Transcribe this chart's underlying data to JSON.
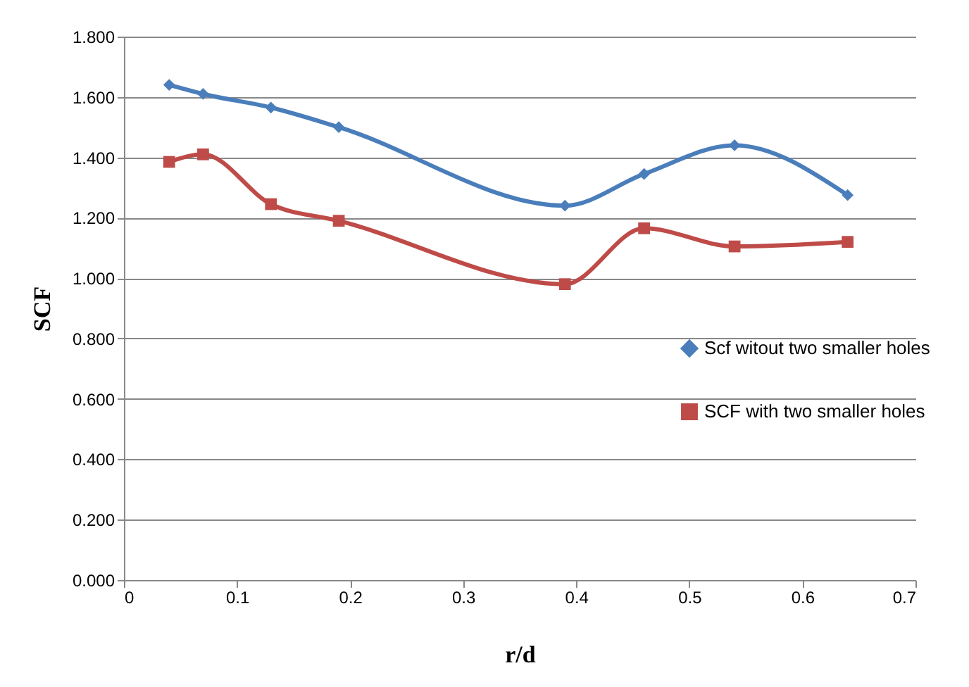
{
  "chart_data": {
    "type": "line",
    "xlabel": "r/d",
    "ylabel": "SCF",
    "xlim": [
      0,
      0.7
    ],
    "xticks": [
      0,
      0.1,
      0.2,
      0.3,
      0.4,
      0.5,
      0.6,
      0.7
    ],
    "ylim": [
      0,
      1.8
    ],
    "yticks": [
      {
        "value": 0,
        "label": "0.000"
      },
      {
        "value": 0.2,
        "label": "0.200"
      },
      {
        "value": 0.4,
        "label": "0.400"
      },
      {
        "value": 0.6,
        "label": "0.600"
      },
      {
        "value": 0.8,
        "label": "0.800"
      },
      {
        "value": 1,
        "label": "1.000"
      },
      {
        "value": 1.2,
        "label": "1.200"
      },
      {
        "value": 1.4,
        "label": "1.400"
      },
      {
        "value": 1.6,
        "label": "1.600"
      },
      {
        "value": 1.8,
        "label": "1.800"
      }
    ],
    "grid": "y",
    "legend": "right",
    "x": [
      0.04,
      0.07,
      0.13,
      0.19,
      0.39,
      0.46,
      0.54,
      0.64
    ],
    "series": [
      {
        "name": "Scf witout two smaller holes",
        "color": "#4a7ebb",
        "marker": "diamond",
        "values": [
          1.64,
          1.61,
          1.565,
          1.5,
          1.24,
          1.345,
          1.44,
          1.275
        ]
      },
      {
        "name": "SCF with two smaller holes",
        "color": "#be4b48",
        "marker": "square",
        "values": [
          1.385,
          1.41,
          1.245,
          1.19,
          0.98,
          1.165,
          1.105,
          1.12
        ]
      }
    ]
  }
}
